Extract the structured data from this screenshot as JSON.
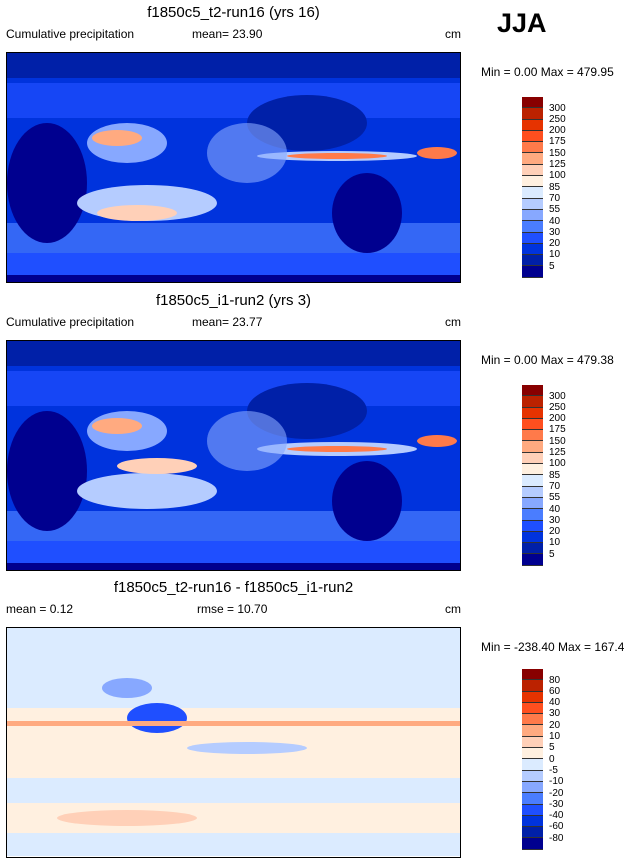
{
  "season": "JJA",
  "panels": [
    {
      "title": "f1850c5_t2-run16 (yrs 16)",
      "left": "Cumulative precipitation",
      "stat": "mean=  23.90",
      "units": "cm",
      "minmax": "Min =   0.00 Max = 479.95"
    },
    {
      "title": "f1850c5_i1-run2 (yrs 3)",
      "left": "Cumulative precipitation",
      "stat": "mean=  23.77",
      "units": "cm",
      "minmax": "Min =   0.00 Max = 479.38"
    },
    {
      "title": "f1850c5_t2-run16 - f1850c5_i1-run2",
      "left": "mean =   0.12",
      "stat": "rmse =  10.70",
      "units": "cm",
      "minmax": "Min = -238.40 Max = 167.40"
    }
  ],
  "chart_data": [
    {
      "type": "heatmap",
      "title": "f1850c5_t2-run16 (yrs 16)",
      "levels": [
        "300",
        "250",
        "200",
        "175",
        "150",
        "125",
        "100",
        "85",
        "70",
        "55",
        "40",
        "30",
        "20",
        "10",
        "5"
      ],
      "mean": 23.9,
      "min": 0.0,
      "max": 479.95,
      "units": "cm"
    },
    {
      "type": "heatmap",
      "title": "f1850c5_i1-run2 (yrs 3)",
      "levels": [
        "300",
        "250",
        "200",
        "175",
        "150",
        "125",
        "100",
        "85",
        "70",
        "55",
        "40",
        "30",
        "20",
        "10",
        "5"
      ],
      "mean": 23.77,
      "min": 0.0,
      "max": 479.38,
      "units": "cm"
    },
    {
      "type": "heatmap",
      "title": "f1850c5_t2-run16 - f1850c5_i1-run2",
      "levels": [
        "80",
        "60",
        "40",
        "30",
        "20",
        "10",
        "5",
        "0",
        "-5",
        "-10",
        "-20",
        "-30",
        "-40",
        "-60",
        "-80"
      ],
      "mean": 0.12,
      "rmse": 10.7,
      "min": -238.4,
      "max": 167.4,
      "units": "cm"
    }
  ],
  "colors": [
    "#880000",
    "#bb2200",
    "#e63300",
    "#ff4f1f",
    "#ff7a4a",
    "#ffaa80",
    "#ffd0b8",
    "#fff0e0",
    "#dbebff",
    "#b5ccff",
    "#87a8ff",
    "#4a7dff",
    "#1f4fff",
    "#0033dd",
    "#0020a8",
    "#00008f"
  ]
}
